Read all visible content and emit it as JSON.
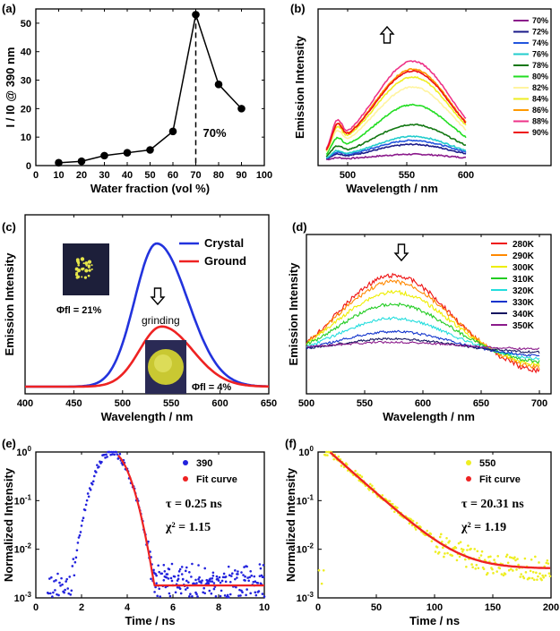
{
  "chart_data": [
    {
      "panel": "(a)",
      "type": "line",
      "xlabel": "Water fraction (vol %)",
      "ylabel": "I / I0 @ 390 nm",
      "xlim": [
        0,
        100
      ],
      "ylim": [
        0,
        55
      ],
      "xticks": [
        0,
        10,
        20,
        30,
        40,
        50,
        60,
        70,
        80,
        90,
        100
      ],
      "yticks": [
        0,
        10,
        20,
        30,
        40,
        50
      ],
      "x": [
        10,
        20,
        30,
        40,
        50,
        60,
        70,
        80,
        90
      ],
      "y": [
        1,
        1.5,
        3.5,
        4.5,
        5.5,
        12,
        53,
        28.5,
        20
      ],
      "annotation": "70%",
      "marker_x": 70
    },
    {
      "panel": "(b)",
      "type": "line",
      "xlabel": "Wavelength / nm",
      "ylabel": "Emission Intensity",
      "xlim": [
        475,
        600
      ],
      "xticks": [
        500,
        550,
        600
      ],
      "arrow": "up",
      "series": [
        {
          "name": "70%",
          "color": "#8B1A8B",
          "peak": 3
        },
        {
          "name": "72%",
          "color": "#1a1a8a",
          "peak": 8
        },
        {
          "name": "74%",
          "color": "#2255dd",
          "peak": 10
        },
        {
          "name": "76%",
          "color": "#22cccc",
          "peak": 12
        },
        {
          "name": "78%",
          "color": "#117711",
          "peak": 18
        },
        {
          "name": "80%",
          "color": "#22dd22",
          "peak": 28
        },
        {
          "name": "82%",
          "color": "#fff4a0",
          "peak": 37
        },
        {
          "name": "84%",
          "color": "#eeee22",
          "peak": 42
        },
        {
          "name": "86%",
          "color": "#ff9900",
          "peak": 46
        },
        {
          "name": "88%",
          "color": "#ee3388",
          "peak": 50
        },
        {
          "name": "90%",
          "color": "#ee1111",
          "peak": 45
        }
      ]
    },
    {
      "panel": "(c)",
      "type": "line",
      "xlabel": "Wavelength / nm",
      "ylabel": "Emission Intensity",
      "xlim": [
        400,
        650
      ],
      "xticks": [
        400,
        450,
        500,
        550,
        600,
        650
      ],
      "series": [
        {
          "name": "Crystal",
          "color": "#2233dd",
          "peak_x": 535,
          "peak": 1.0
        },
        {
          "name": "Ground",
          "color": "#ee2222",
          "peak_x": 540,
          "peak": 0.42
        }
      ],
      "annotations": {
        "grinding": "grinding",
        "phi_crystal": "Φfl = 21%",
        "phi_ground": "Φfl = 4%"
      }
    },
    {
      "panel": "(d)",
      "type": "line",
      "xlabel": "Wavelength / nm",
      "ylabel": "Emission Intensity",
      "xlim": [
        500,
        710
      ],
      "xticks": [
        500,
        550,
        600,
        650,
        700
      ],
      "arrow": "down",
      "series": [
        {
          "name": "280K",
          "color": "#ee1111",
          "peak": 1.0
        },
        {
          "name": "290K",
          "color": "#ff8800",
          "peak": 0.9
        },
        {
          "name": "300K",
          "color": "#eeee00",
          "peak": 0.76
        },
        {
          "name": "310K",
          "color": "#22cc22",
          "peak": 0.6
        },
        {
          "name": "320K",
          "color": "#22dddd",
          "peak": 0.42
        },
        {
          "name": "330K",
          "color": "#1133cc",
          "peak": 0.25
        },
        {
          "name": "340K",
          "color": "#151560",
          "peak": 0.14
        },
        {
          "name": "350K",
          "color": "#8B1A8B",
          "peak": 0.07
        }
      ]
    },
    {
      "panel": "(e)",
      "type": "scatter",
      "xlabel": "Time / ns",
      "ylabel": "Normalized Intensity",
      "xlim": [
        0,
        10
      ],
      "ylim_log": [
        -3,
        0
      ],
      "xticks": [
        0,
        2,
        4,
        6,
        8,
        10
      ],
      "series": [
        {
          "name": "390",
          "color": "#2222dd"
        },
        {
          "name": "Fit curve",
          "color": "#ee2222"
        }
      ],
      "tau": "τ = 0.25 ns",
      "chi": "χ² = 1.15"
    },
    {
      "panel": "(f)",
      "type": "scatter",
      "xlabel": "Time / ns",
      "ylabel": "Normalized Intensity",
      "xlim": [
        0,
        200
      ],
      "ylim_log": [
        -3,
        0
      ],
      "xticks": [
        0,
        50,
        100,
        150,
        200
      ],
      "series": [
        {
          "name": "550",
          "color": "#eeee22"
        },
        {
          "name": "Fit curve",
          "color": "#ee2222"
        }
      ],
      "tau": "τ = 20.31 ns",
      "chi": "χ² = 1.19"
    }
  ]
}
